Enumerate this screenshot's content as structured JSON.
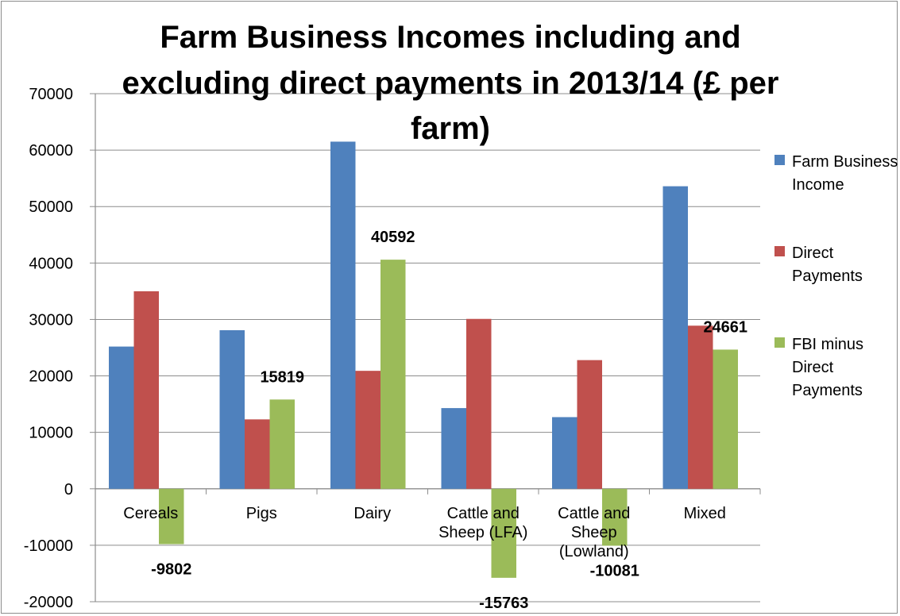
{
  "chart_data": {
    "type": "bar",
    "title": "Farm Business Incomes including and excluding direct payments in 2013/14 (£ per farm)",
    "title_lines": [
      "Farm Business Incomes including and",
      "excluding direct payments in 2013/14 (£ per",
      "farm)"
    ],
    "categories": [
      "Cereals",
      "Pigs",
      "Dairy",
      "Cattle and Sheep (LFA)",
      "Cattle and Sheep (Lowland)",
      "Mixed"
    ],
    "category_lines": [
      [
        "Cereals"
      ],
      [
        "Pigs"
      ],
      [
        "Dairy"
      ],
      [
        "Cattle and",
        "Sheep (LFA)"
      ],
      [
        "Cattle and",
        "Sheep",
        "(Lowland)"
      ],
      [
        "Mixed"
      ]
    ],
    "series": [
      {
        "name": "Farm Business Income",
        "legend_lines": [
          "Farm Business",
          "Income"
        ],
        "color": "#4f81bd",
        "values": [
          25200,
          28100,
          61500,
          14300,
          12700,
          53600
        ]
      },
      {
        "name": "Direct Payments",
        "legend_lines": [
          "Direct",
          "Payments"
        ],
        "color": "#c0504d",
        "values": [
          35000,
          12300,
          20900,
          30100,
          22800,
          28900
        ]
      },
      {
        "name": "FBI minus Direct Payments",
        "legend_lines": [
          "FBI minus",
          "Direct",
          "Payments"
        ],
        "color": "#9bbb59",
        "values": [
          -9802,
          15819,
          40592,
          -15763,
          -10081,
          24661
        ]
      }
    ],
    "data_labels": {
      "series": "FBI minus Direct Payments",
      "values": [
        "-9802",
        "15819",
        "40592",
        "-15763",
        "-10081",
        "24661"
      ]
    },
    "yticks": [
      "70000",
      "60000",
      "50000",
      "40000",
      "30000",
      "20000",
      "10000",
      "0",
      "-10000",
      "-20000"
    ],
    "ylim": [
      -20000,
      70000
    ],
    "xlabel": "",
    "ylabel": "",
    "grid": true,
    "legend_position": "right"
  }
}
